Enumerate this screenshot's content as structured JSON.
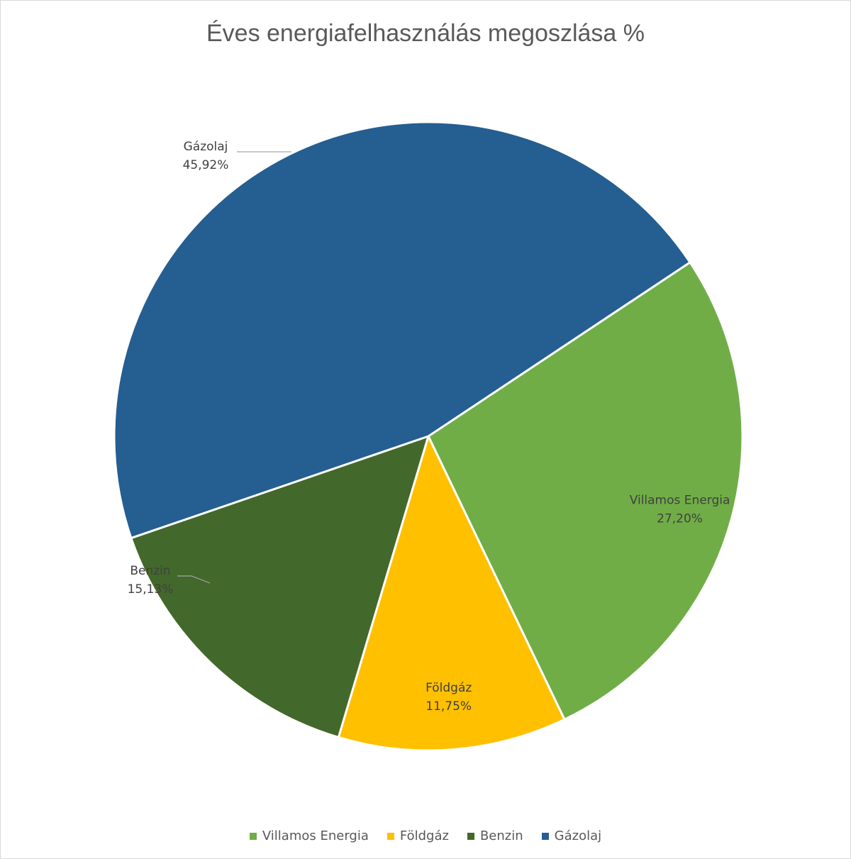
{
  "chart_data": {
    "type": "pie",
    "title": "Éves energiafelhasználás megoszlása %",
    "categories": [
      "Villamos Energia",
      "Földgáz",
      "Benzin",
      "Gázolaj"
    ],
    "values": [
      27.2,
      11.75,
      15.13,
      45.92
    ],
    "value_labels": [
      "27,20%",
      "11,75%",
      "15,13%",
      "45,92%"
    ],
    "colors": [
      "#70AD47",
      "#FFC000",
      "#43682B",
      "#255E91"
    ],
    "legend_position": "bottom",
    "start_angle_deg": 56.4,
    "direction": "clockwise"
  }
}
